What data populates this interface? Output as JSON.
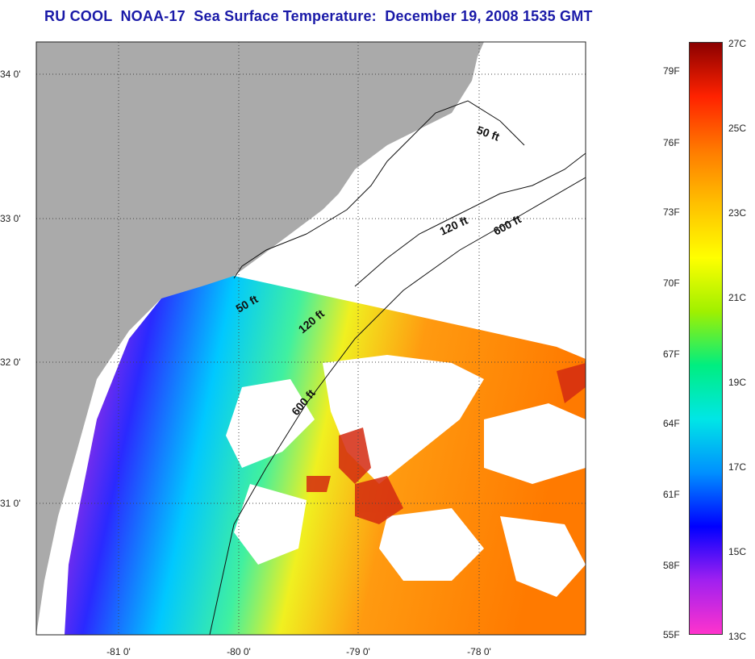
{
  "title": "RU COOL  NOAA-17  Sea Surface Temperature:  December 19, 2008 1535 GMT",
  "map": {
    "lat_labels": [
      "34 0'",
      "33 0'",
      "32 0'",
      "31 0'"
    ],
    "lon_labels": [
      "-81 0'",
      "-80 0'",
      "-79 0'",
      "-78 0'"
    ],
    "isobath_labels": [
      "50 ft",
      "120 ft",
      "600 ft",
      "50 ft",
      "120 ft",
      "600 ft"
    ],
    "colors": {
      "land": "#aaaaaa",
      "cloud": "#ffffff",
      "grid": "#444444"
    }
  },
  "colorbar": {
    "f_labels": [
      "79F",
      "76F",
      "73F",
      "70F",
      "67F",
      "64F",
      "61F",
      "58F",
      "55F"
    ],
    "c_labels": [
      "27C",
      "25C",
      "23C",
      "21C",
      "19C",
      "17C",
      "15C",
      "13C"
    ],
    "gradient_stops": [
      "#8b0000",
      "#ff2200",
      "#ff7a00",
      "#ffc000",
      "#ffff00",
      "#a0f000",
      "#00ee80",
      "#00e6e6",
      "#0090ff",
      "#0000ff",
      "#a020f0",
      "#ff33cc"
    ]
  }
}
